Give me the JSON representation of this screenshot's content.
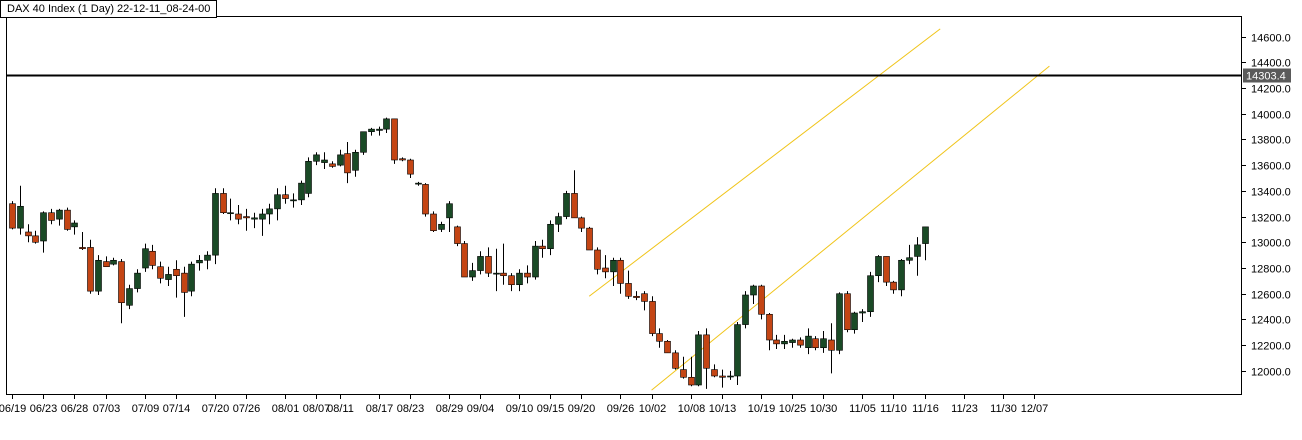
{
  "chart_data": {
    "type": "candlestick",
    "title": "DAX 40 Index (1 Day) 22-12-11_08-24-00",
    "last_price_label": "14303.4",
    "last_price": 14303.4,
    "ylim": [
      11820,
      14760
    ],
    "y_ticks": [
      "14600.0",
      "14400.0",
      "14200.0",
      "14000.0",
      "13800.0",
      "13600.0",
      "13400.0",
      "13200.0",
      "13000.0",
      "12800.0",
      "12600.0",
      "12400.0",
      "12200.0",
      "12000.0"
    ],
    "x_ticks": [
      {
        "label": "06/19",
        "i": 0
      },
      {
        "label": "06/23",
        "i": 4
      },
      {
        "label": "06/28",
        "i": 8
      },
      {
        "label": "07/03",
        "i": 12
      },
      {
        "label": "07/09",
        "i": 17
      },
      {
        "label": "07/14",
        "i": 21
      },
      {
        "label": "07/20",
        "i": 26
      },
      {
        "label": "07/26",
        "i": 30
      },
      {
        "label": "08/01",
        "i": 35
      },
      {
        "label": "08/07",
        "i": 39
      },
      {
        "label": "08/11",
        "i": 42
      },
      {
        "label": "08/17",
        "i": 47
      },
      {
        "label": "08/23",
        "i": 51
      },
      {
        "label": "08/29",
        "i": 56
      },
      {
        "label": "09/04",
        "i": 60
      },
      {
        "label": "09/10",
        "i": 65
      },
      {
        "label": "09/15",
        "i": 69
      },
      {
        "label": "09/20",
        "i": 73
      },
      {
        "label": "09/26",
        "i": 78
      },
      {
        "label": "10/02",
        "i": 82
      },
      {
        "label": "10/08",
        "i": 87
      },
      {
        "label": "10/13",
        "i": 91
      },
      {
        "label": "10/19",
        "i": 96
      },
      {
        "label": "10/25",
        "i": 100
      },
      {
        "label": "10/30",
        "i": 104
      },
      {
        "label": "11/05",
        "i": 109
      },
      {
        "label": "11/10",
        "i": 113
      },
      {
        "label": "11/16",
        "i": 117
      },
      {
        "label": "11/23",
        "i": 122
      },
      {
        "label": "11/30",
        "i": 127
      },
      {
        "label": "12/07",
        "i": 131
      }
    ],
    "colors": {
      "up": "#1a4a26",
      "down": "#c44514",
      "wick": "#000000",
      "channel": "#f0c419",
      "price_line": "#000000"
    },
    "channel": [
      {
        "x1": 74,
        "y1": 12580,
        "x2": 119,
        "y2": 14660
      },
      {
        "x1": 82,
        "y1": 11850,
        "x2": 133,
        "y2": 14370
      }
    ],
    "candles": [
      [
        13300,
        13320,
        13100,
        13110
      ],
      [
        13110,
        13440,
        13060,
        13280
      ],
      [
        13080,
        13140,
        13000,
        13050
      ],
      [
        13050,
        13090,
        12990,
        13000
      ],
      [
        13010,
        13240,
        12920,
        13230
      ],
      [
        13230,
        13260,
        13140,
        13170
      ],
      [
        13180,
        13260,
        13130,
        13250
      ],
      [
        13250,
        13270,
        13090,
        13100
      ],
      [
        13120,
        13170,
        13060,
        13150
      ],
      [
        12960,
        13080,
        12940,
        12950
      ],
      [
        12960,
        13020,
        12600,
        12620
      ],
      [
        12620,
        12900,
        12590,
        12860
      ],
      [
        12850,
        12890,
        12810,
        12810
      ],
      [
        12830,
        12880,
        12820,
        12860
      ],
      [
        12850,
        12870,
        12370,
        12530
      ],
      [
        12510,
        12670,
        12480,
        12640
      ],
      [
        12640,
        12790,
        12610,
        12760
      ],
      [
        12800,
        12990,
        12770,
        12950
      ],
      [
        12930,
        12980,
        12790,
        12820
      ],
      [
        12810,
        12850,
        12680,
        12720
      ],
      [
        12710,
        12810,
        12660,
        12750
      ],
      [
        12790,
        12860,
        12570,
        12740
      ],
      [
        12760,
        12810,
        12420,
        12610
      ],
      [
        12620,
        12850,
        12580,
        12830
      ],
      [
        12840,
        12900,
        12780,
        12860
      ],
      [
        12860,
        12930,
        12790,
        12900
      ],
      [
        12900,
        13420,
        12830,
        13380
      ],
      [
        13380,
        13420,
        13220,
        13230
      ],
      [
        13230,
        13340,
        13170,
        13230
      ],
      [
        13220,
        13290,
        13140,
        13180
      ],
      [
        13200,
        13260,
        13090,
        13190
      ],
      [
        13180,
        13230,
        13110,
        13190
      ],
      [
        13180,
        13260,
        13050,
        13220
      ],
      [
        13220,
        13300,
        13140,
        13260
      ],
      [
        13260,
        13420,
        13170,
        13370
      ],
      [
        13370,
        13440,
        13300,
        13340
      ],
      [
        13330,
        13380,
        13270,
        13330
      ],
      [
        13330,
        13480,
        13290,
        13460
      ],
      [
        13380,
        13660,
        13350,
        13630
      ],
      [
        13630,
        13700,
        13600,
        13680
      ],
      [
        13620,
        13700,
        13570,
        13640
      ],
      [
        13610,
        13630,
        13580,
        13590
      ],
      [
        13600,
        13720,
        13590,
        13680
      ],
      [
        13690,
        13780,
        13460,
        13540
      ],
      [
        13560,
        13720,
        13510,
        13700
      ],
      [
        13700,
        13860,
        13680,
        13860
      ],
      [
        13860,
        13890,
        13830,
        13880
      ],
      [
        13870,
        13900,
        13830,
        13880
      ],
      [
        13880,
        13970,
        13850,
        13960
      ],
      [
        13960,
        13960,
        13610,
        13640
      ],
      [
        13650,
        13660,
        13630,
        13640
      ],
      [
        13640,
        13650,
        13500,
        13530
      ],
      [
        13460,
        13470,
        13440,
        13460
      ],
      [
        13450,
        13460,
        13200,
        13220
      ],
      [
        13220,
        13240,
        13080,
        13090
      ],
      [
        13100,
        13160,
        13080,
        13140
      ],
      [
        13190,
        13320,
        13080,
        13300
      ],
      [
        13120,
        13130,
        12970,
        12990
      ],
      [
        12990,
        13010,
        12730,
        12730
      ],
      [
        12730,
        12840,
        12700,
        12780
      ],
      [
        12780,
        12930,
        12750,
        12890
      ],
      [
        12890,
        12960,
        12730,
        12760
      ],
      [
        12760,
        12950,
        12620,
        12760
      ],
      [
        12760,
        12990,
        12670,
        12740
      ],
      [
        12740,
        12760,
        12620,
        12670
      ],
      [
        12670,
        12790,
        12620,
        12760
      ],
      [
        12760,
        12820,
        12680,
        12730
      ],
      [
        12730,
        13010,
        12710,
        12970
      ],
      [
        12970,
        13020,
        12880,
        12950
      ],
      [
        12950,
        13170,
        12900,
        13140
      ],
      [
        13140,
        13230,
        13080,
        13200
      ],
      [
        13200,
        13400,
        13180,
        13380
      ],
      [
        13380,
        13560,
        13190,
        13190
      ],
      [
        13190,
        13200,
        13080,
        13110
      ],
      [
        13110,
        13120,
        12940,
        12940
      ],
      [
        12940,
        12960,
        12750,
        12790
      ],
      [
        12800,
        12900,
        12720,
        12770
      ],
      [
        12770,
        12880,
        12660,
        12860
      ],
      [
        12860,
        12880,
        12600,
        12680
      ],
      [
        12680,
        12780,
        12560,
        12580
      ],
      [
        12580,
        12620,
        12550,
        12570
      ],
      [
        12600,
        12620,
        12470,
        12540
      ],
      [
        12540,
        12580,
        12270,
        12290
      ],
      [
        12290,
        12330,
        12180,
        12230
      ],
      [
        12230,
        12240,
        12140,
        12140
      ],
      [
        12140,
        12160,
        12010,
        12020
      ],
      [
        12010,
        12110,
        11940,
        11950
      ],
      [
        11950,
        12110,
        11880,
        11890
      ],
      [
        11890,
        12310,
        11880,
        12280
      ],
      [
        12280,
        12330,
        11860,
        12020
      ],
      [
        12010,
        12050,
        11950,
        11960
      ],
      [
        11960,
        12010,
        11870,
        11950
      ],
      [
        11960,
        12000,
        11930,
        11960
      ],
      [
        11960,
        12380,
        11890,
        12360
      ],
      [
        12360,
        12620,
        12330,
        12590
      ],
      [
        12590,
        12670,
        12520,
        12660
      ],
      [
        12660,
        12670,
        12400,
        12440
      ],
      [
        12440,
        12450,
        12160,
        12240
      ],
      [
        12240,
        12280,
        12170,
        12210
      ],
      [
        12210,
        12280,
        12170,
        12230
      ],
      [
        12220,
        12250,
        12180,
        12240
      ],
      [
        12240,
        12260,
        12180,
        12200
      ],
      [
        12180,
        12330,
        12130,
        12270
      ],
      [
        12250,
        12270,
        12160,
        12180
      ],
      [
        12180,
        12310,
        12140,
        12250
      ],
      [
        12240,
        12370,
        11980,
        12160
      ],
      [
        12160,
        12610,
        12130,
        12600
      ],
      [
        12600,
        12620,
        12300,
        12320
      ],
      [
        12320,
        12460,
        12290,
        12450
      ],
      [
        12450,
        12480,
        12380,
        12460
      ],
      [
        12460,
        12770,
        12420,
        12740
      ],
      [
        12740,
        12900,
        12690,
        12890
      ],
      [
        12890,
        12890,
        12660,
        12690
      ],
      [
        12690,
        12700,
        12600,
        12630
      ],
      [
        12630,
        12870,
        12580,
        12860
      ],
      [
        12860,
        12980,
        12830,
        12880
      ],
      [
        12890,
        13040,
        12740,
        12980
      ],
      [
        12990,
        13120,
        12860,
        13120
      ]
    ]
  }
}
